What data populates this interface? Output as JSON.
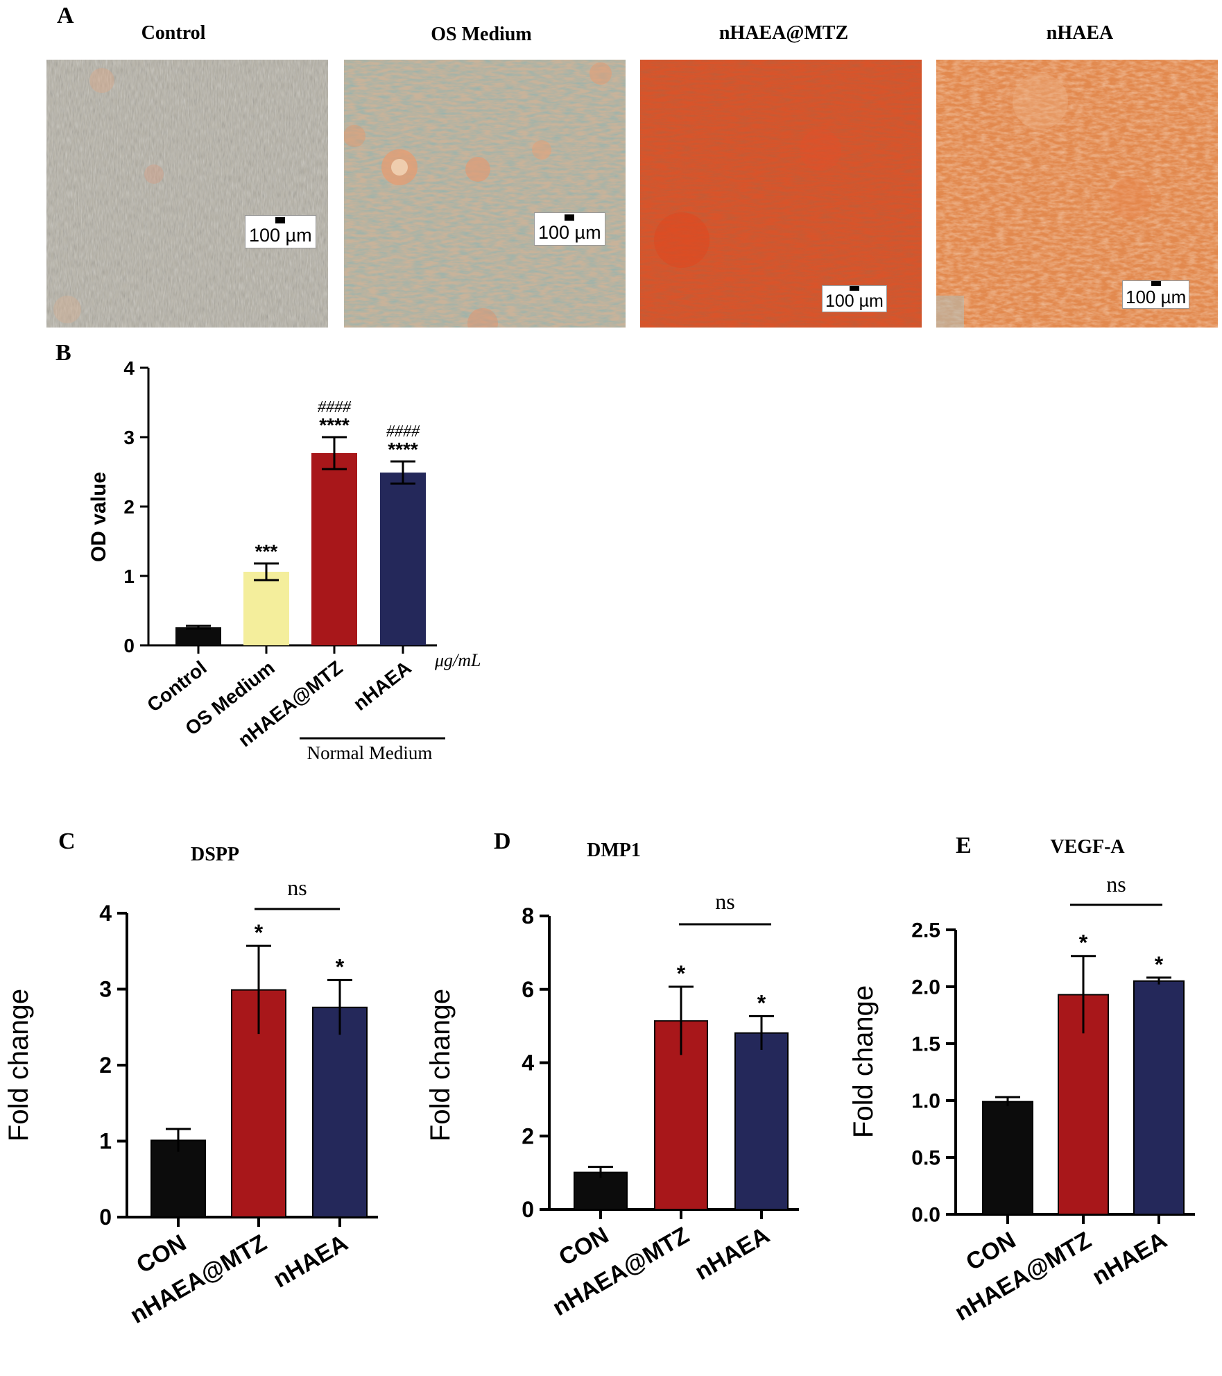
{
  "panel_a": {
    "letter": "A",
    "images": [
      {
        "title": "Control",
        "scale_label": "100 µm",
        "tone": "grey"
      },
      {
        "title": "OS Medium",
        "scale_label": "100 µm",
        "tone": "teal"
      },
      {
        "title": "nHAEA@MTZ",
        "scale_label": "100 µm",
        "tone": "red"
      },
      {
        "title": "nHAEA",
        "scale_label": "100 µm",
        "tone": "orange"
      }
    ]
  },
  "chart_data": [
    {
      "id": "B",
      "type": "bar",
      "letter": "B",
      "ylabel": "OD value",
      "unit_label": "μg/mL",
      "group_label": "Normal Medium",
      "ylim": [
        0,
        4
      ],
      "yticks": [
        "0",
        "1",
        "2",
        "3",
        "4"
      ],
      "categories": [
        "Control",
        "OS Medium",
        "nHAEA@MTZ",
        "nHAEA"
      ],
      "values": [
        0.26,
        1.06,
        2.77,
        2.49
      ],
      "errors": [
        0.02,
        0.12,
        0.23,
        0.16
      ],
      "colors": [
        "#0c0c0c",
        "#f4ee9c",
        "#a8171a",
        "#24285a"
      ],
      "stars": [
        "",
        "***",
        "****",
        "****"
      ],
      "hashes": [
        "",
        "",
        "####",
        "####"
      ]
    },
    {
      "id": "C",
      "type": "bar",
      "letter": "C",
      "title": "DSPP",
      "ylabel": "Fold change",
      "ylim": [
        0,
        4
      ],
      "yticks": [
        "0",
        "1",
        "2",
        "3",
        "4"
      ],
      "categories": [
        "CON",
        "nHAEA@MTZ",
        "nHAEA"
      ],
      "values": [
        1.01,
        2.99,
        2.76
      ],
      "errors": [
        0.15,
        0.58,
        0.36
      ],
      "colors": [
        "#0c0c0c",
        "#a8171a",
        "#24285a"
      ],
      "stars": [
        "",
        "*",
        "*"
      ],
      "comparison_label": "ns"
    },
    {
      "id": "D",
      "type": "bar",
      "letter": "D",
      "title": "DMP1",
      "ylabel": "Fold change",
      "ylim": [
        0,
        8
      ],
      "yticks": [
        "0",
        "2",
        "4",
        "6",
        "8"
      ],
      "categories": [
        "CON",
        "nHAEA@MTZ",
        "nHAEA"
      ],
      "values": [
        1.01,
        5.14,
        4.81
      ],
      "errors": [
        0.15,
        0.93,
        0.46
      ],
      "colors": [
        "#0c0c0c",
        "#a8171a",
        "#24285a"
      ],
      "stars": [
        "",
        "*",
        "*"
      ],
      "comparison_label": "ns"
    },
    {
      "id": "E",
      "type": "bar",
      "letter": "E",
      "title": "VEGF-A",
      "ylabel": "Fold change",
      "ylim": [
        0,
        2.5
      ],
      "yticks": [
        "0.0",
        "0.5",
        "1.0",
        "1.5",
        "2.0",
        "2.5"
      ],
      "categories": [
        "CON",
        "nHAEA@MTZ",
        "nHAEA"
      ],
      "values": [
        0.99,
        1.93,
        2.05
      ],
      "errors": [
        0.04,
        0.34,
        0.03
      ],
      "colors": [
        "#0c0c0c",
        "#a8171a",
        "#24285a"
      ],
      "stars": [
        "",
        "*",
        "*"
      ],
      "comparison_label": "ns"
    }
  ]
}
